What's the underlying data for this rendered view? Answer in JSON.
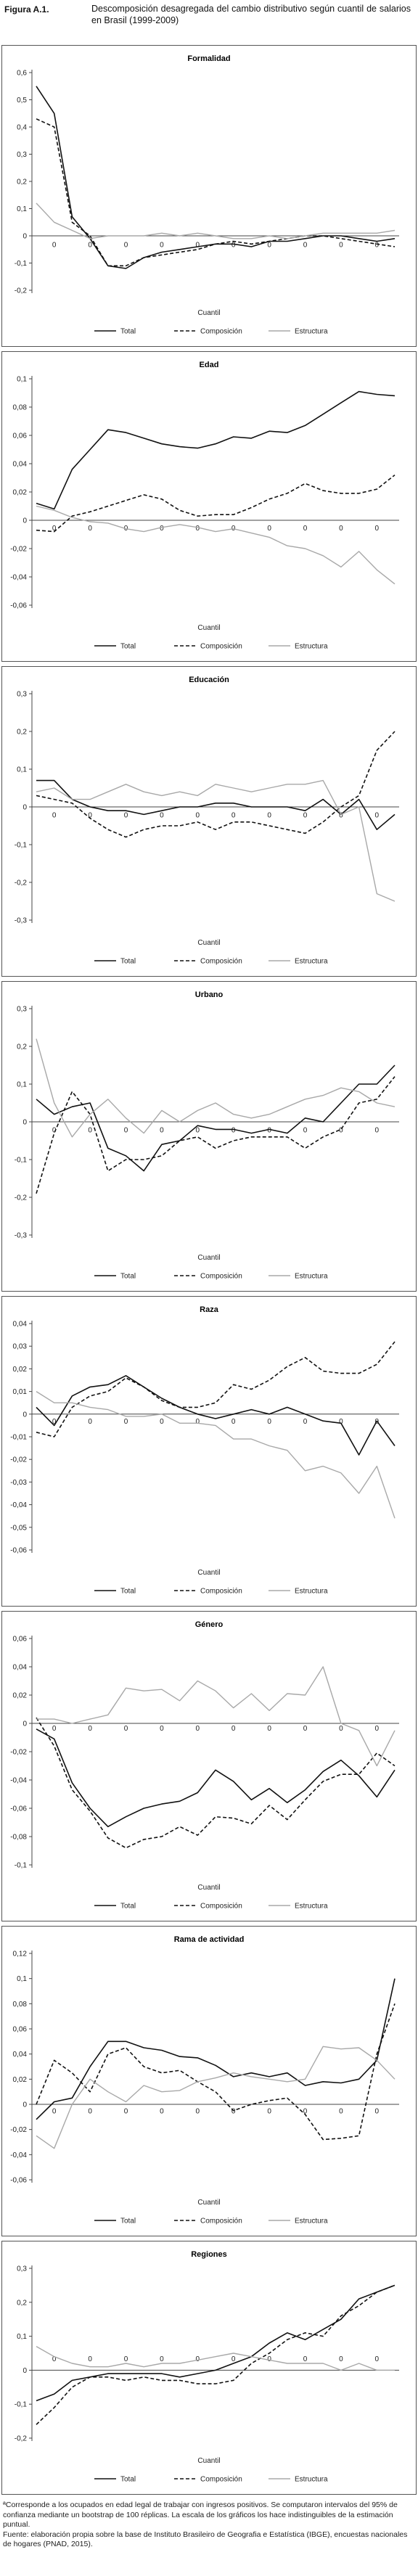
{
  "header": {
    "figure_label": "Figura A.1.",
    "title": "Descomposición desagregada del cambio distributivo según cuantil de salarios en Brasil (1999-2009)"
  },
  "footer": {
    "note": "ªCorresponde a los ocupados en edad legal de trabajar con ingresos positivos. Se computaron intervalos del 95% de confianza mediante un bootstrap de 100 réplicas. La escala de los gráficos los hace indistinguibles de la estimación puntual.",
    "source": "Fuente: elaboración propia sobre la base de Instituto Brasileiro de Geografia e Estatística (IBGE), encuestas nacionales de hogares (PNAD, 2015)."
  },
  "chart_data": [
    {
      "type": "line",
      "title": "Formalidad",
      "xlabel": "Cuantil",
      "ylim": [
        -0.2,
        0.6
      ],
      "yticks": [
        -0.2,
        -0.1,
        0,
        0.1,
        0.2,
        0.3,
        0.4,
        0.5,
        0.6
      ],
      "ytick_labels": [
        "-0,2",
        "-0,1",
        "0",
        "0,1",
        "0,2",
        "0,3",
        "0,4",
        "0,5",
        "0,6"
      ],
      "x_marker_label": "0",
      "x_marker_y": -0.03,
      "x_marker_at": [
        1,
        3,
        5,
        7,
        9,
        11,
        13,
        15,
        17,
        19
      ],
      "legend": [
        "Total",
        "Composición",
        "Estructura"
      ],
      "legend_position": "bottom",
      "series": [
        {
          "name": "Total",
          "style": "solid-black",
          "values": [
            0.55,
            0.45,
            0.07,
            -0.01,
            -0.11,
            -0.12,
            -0.08,
            -0.06,
            -0.05,
            -0.04,
            -0.03,
            -0.03,
            -0.04,
            -0.02,
            -0.02,
            -0.01,
            0.0,
            0.0,
            -0.01,
            -0.02,
            -0.01
          ]
        },
        {
          "name": "Composición",
          "style": "dashed-black",
          "values": [
            0.43,
            0.4,
            0.05,
            0.0,
            -0.11,
            -0.11,
            -0.08,
            -0.07,
            -0.06,
            -0.05,
            -0.03,
            -0.02,
            -0.03,
            -0.02,
            -0.01,
            0.0,
            0.0,
            -0.01,
            -0.02,
            -0.03,
            -0.04
          ]
        },
        {
          "name": "Estructura",
          "style": "solid-gray",
          "values": [
            0.12,
            0.05,
            0.02,
            -0.01,
            0.0,
            0.0,
            0.0,
            0.01,
            0.0,
            0.01,
            0.0,
            -0.01,
            -0.01,
            0.0,
            -0.01,
            0.0,
            0.01,
            0.01,
            0.01,
            0.01,
            0.02
          ]
        }
      ]
    },
    {
      "type": "line",
      "title": "Edad",
      "xlabel": "Cuantil",
      "ylim": [
        -0.06,
        0.1
      ],
      "yticks": [
        -0.06,
        -0.04,
        -0.02,
        0,
        0.02,
        0.04,
        0.06,
        0.08,
        0.1
      ],
      "ytick_labels": [
        "-0,06",
        "-0,04",
        "-0,02",
        "0",
        "0,02",
        "0,04",
        "0,06",
        "0,08",
        "0,1"
      ],
      "x_marker_label": "0",
      "x_marker_y": -0.005,
      "x_marker_at": [
        1,
        3,
        5,
        7,
        9,
        11,
        13,
        15,
        17,
        19
      ],
      "legend": [
        "Total",
        "Composición",
        "Estructura"
      ],
      "legend_position": "bottom",
      "series": [
        {
          "name": "Total",
          "style": "solid-black",
          "values": [
            0.012,
            0.008,
            0.036,
            0.05,
            0.064,
            0.062,
            0.058,
            0.054,
            0.052,
            0.051,
            0.054,
            0.059,
            0.058,
            0.063,
            0.062,
            0.067,
            0.075,
            0.083,
            0.091,
            0.089,
            0.088
          ]
        },
        {
          "name": "Composición",
          "style": "dashed-black",
          "values": [
            -0.007,
            -0.008,
            0.003,
            0.006,
            0.01,
            0.014,
            0.018,
            0.015,
            0.007,
            0.003,
            0.004,
            0.004,
            0.009,
            0.015,
            0.019,
            0.026,
            0.021,
            0.019,
            0.019,
            0.022,
            0.032
          ]
        },
        {
          "name": "Estructura",
          "style": "solid-gray",
          "values": [
            0.01,
            0.007,
            0.002,
            -0.001,
            -0.002,
            -0.006,
            -0.008,
            -0.005,
            -0.003,
            -0.005,
            -0.008,
            -0.006,
            -0.009,
            -0.012,
            -0.018,
            -0.02,
            -0.025,
            -0.033,
            -0.022,
            -0.035,
            -0.045
          ]
        }
      ]
    },
    {
      "type": "line",
      "title": "Educación",
      "xlabel": "Cuantil",
      "ylim": [
        -0.3,
        0.3
      ],
      "yticks": [
        -0.3,
        -0.2,
        -0.1,
        0,
        0.1,
        0.2,
        0.3
      ],
      "ytick_labels": [
        "-0,3",
        "-0,2",
        "-0,1",
        "0",
        "0,1",
        "0,2",
        "0,3"
      ],
      "x_marker_label": "0",
      "x_marker_y": -0.02,
      "x_marker_at": [
        1,
        3,
        5,
        7,
        9,
        11,
        13,
        15,
        17,
        19
      ],
      "legend": [
        "Total",
        "Composición",
        "Estructura"
      ],
      "legend_position": "bottom",
      "series": [
        {
          "name": "Total",
          "style": "solid-black",
          "values": [
            0.07,
            0.07,
            0.02,
            0.0,
            -0.01,
            -0.01,
            -0.02,
            -0.01,
            0.0,
            0.0,
            0.01,
            0.01,
            0.0,
            0.0,
            0.0,
            -0.01,
            0.02,
            -0.02,
            0.02,
            -0.06,
            -0.02
          ]
        },
        {
          "name": "Composición",
          "style": "dashed-black",
          "values": [
            0.03,
            0.02,
            0.01,
            -0.03,
            -0.06,
            -0.08,
            -0.06,
            -0.05,
            -0.05,
            -0.04,
            -0.06,
            -0.04,
            -0.04,
            -0.05,
            -0.06,
            -0.07,
            -0.04,
            0.0,
            0.03,
            0.15,
            0.2
          ]
        },
        {
          "name": "Estructura",
          "style": "solid-gray",
          "values": [
            0.04,
            0.05,
            0.02,
            0.02,
            0.04,
            0.06,
            0.04,
            0.03,
            0.04,
            0.03,
            0.06,
            0.05,
            0.04,
            0.05,
            0.06,
            0.06,
            0.07,
            -0.02,
            0.0,
            -0.23,
            -0.25
          ]
        }
      ]
    },
    {
      "type": "line",
      "title": "Urbano",
      "xlabel": "Cuantil",
      "ylim": [
        -0.3,
        0.3
      ],
      "yticks": [
        -0.3,
        -0.2,
        -0.1,
        0,
        0.1,
        0.2,
        0.3
      ],
      "ytick_labels": [
        "-0,3",
        "-0,2",
        "-0,1",
        "0",
        "0,1",
        "0,2",
        "0,3"
      ],
      "x_marker_label": "0",
      "x_marker_y": -0.02,
      "x_marker_at": [
        1,
        3,
        5,
        7,
        9,
        11,
        13,
        15,
        17,
        19
      ],
      "legend": [
        "Total",
        "Composición",
        "Estructura"
      ],
      "legend_position": "bottom",
      "series": [
        {
          "name": "Total",
          "style": "solid-black",
          "values": [
            0.06,
            0.02,
            0.04,
            0.05,
            -0.07,
            -0.09,
            -0.13,
            -0.06,
            -0.05,
            -0.01,
            -0.02,
            -0.02,
            -0.03,
            -0.02,
            -0.03,
            0.01,
            0.0,
            0.05,
            0.1,
            0.1,
            0.15
          ]
        },
        {
          "name": "Composición",
          "style": "dashed-black",
          "values": [
            -0.19,
            -0.03,
            0.08,
            0.02,
            -0.13,
            -0.1,
            -0.1,
            -0.09,
            -0.05,
            -0.04,
            -0.07,
            -0.05,
            -0.04,
            -0.04,
            -0.04,
            -0.07,
            -0.04,
            -0.02,
            0.05,
            0.06,
            0.12
          ]
        },
        {
          "name": "Estructura",
          "style": "solid-gray",
          "values": [
            0.22,
            0.05,
            -0.04,
            0.02,
            0.06,
            0.01,
            -0.03,
            0.03,
            0.0,
            0.03,
            0.05,
            0.02,
            0.01,
            0.02,
            0.04,
            0.06,
            0.07,
            0.09,
            0.08,
            0.05,
            0.04
          ]
        }
      ]
    },
    {
      "type": "line",
      "title": "Raza",
      "xlabel": "Cuantil",
      "ylim": [
        -0.06,
        0.04
      ],
      "yticks": [
        -0.06,
        -0.05,
        -0.04,
        -0.03,
        -0.02,
        -0.01,
        0,
        0.01,
        0.02,
        0.03,
        0.04
      ],
      "ytick_labels": [
        "-0,06",
        "-0,05",
        "-0,04",
        "-0,03",
        "-0,02",
        "-0,01",
        "0",
        "0,01",
        "0,02",
        "0,03",
        "0,04"
      ],
      "x_marker_label": "0",
      "x_marker_y": -0.003,
      "x_marker_at": [
        1,
        3,
        5,
        7,
        9,
        11,
        13,
        15,
        17,
        19
      ],
      "legend": [
        "Total",
        "Composición",
        "Estructura"
      ],
      "legend_position": "bottom",
      "series": [
        {
          "name": "Total",
          "style": "solid-black",
          "values": [
            0.003,
            -0.005,
            0.008,
            0.012,
            0.013,
            0.017,
            0.012,
            0.007,
            0.003,
            0.0,
            -0.002,
            0.0,
            0.002,
            0.0,
            0.003,
            0.0,
            -0.003,
            -0.004,
            -0.018,
            -0.003,
            -0.014
          ]
        },
        {
          "name": "Composición",
          "style": "dashed-black",
          "values": [
            -0.008,
            -0.01,
            0.003,
            0.008,
            0.01,
            0.016,
            0.012,
            0.006,
            0.003,
            0.003,
            0.005,
            0.013,
            0.011,
            0.015,
            0.021,
            0.025,
            0.019,
            0.018,
            0.018,
            0.022,
            0.032
          ]
        },
        {
          "name": "Estructura",
          "style": "solid-gray",
          "values": [
            0.01,
            0.005,
            0.005,
            0.003,
            0.002,
            -0.001,
            -0.001,
            0.0,
            -0.004,
            -0.004,
            -0.005,
            -0.011,
            -0.011,
            -0.014,
            -0.016,
            -0.025,
            -0.023,
            -0.026,
            -0.035,
            -0.023,
            -0.046
          ]
        }
      ]
    },
    {
      "type": "line",
      "title": "Género",
      "xlabel": "Cuantil",
      "ylim": [
        -0.1,
        0.06
      ],
      "yticks": [
        -0.1,
        -0.08,
        -0.06,
        -0.04,
        -0.02,
        0,
        0.02,
        0.04,
        0.06
      ],
      "ytick_labels": [
        "-0,1",
        "-0,08",
        "-0,06",
        "-0,04",
        "-0,02",
        "0",
        "0,02",
        "0,04",
        "0,06"
      ],
      "x_marker_label": "0",
      "x_marker_y": -0.003,
      "x_marker_at": [
        1,
        3,
        5,
        7,
        9,
        11,
        13,
        15,
        17,
        19
      ],
      "legend": [
        "Total",
        "Composición",
        "Estructura"
      ],
      "legend_position": "bottom",
      "series": [
        {
          "name": "Total",
          "style": "solid-black",
          "values": [
            -0.004,
            -0.011,
            -0.042,
            -0.06,
            -0.073,
            -0.066,
            -0.06,
            -0.057,
            -0.055,
            -0.049,
            -0.033,
            -0.041,
            -0.054,
            -0.046,
            -0.056,
            -0.047,
            -0.034,
            -0.026,
            -0.037,
            -0.052,
            -0.033
          ]
        },
        {
          "name": "Composición",
          "style": "dashed-black",
          "values": [
            0.004,
            -0.016,
            -0.047,
            -0.062,
            -0.081,
            -0.088,
            -0.082,
            -0.08,
            -0.073,
            -0.079,
            -0.066,
            -0.067,
            -0.071,
            -0.058,
            -0.068,
            -0.054,
            -0.041,
            -0.036,
            -0.036,
            -0.021,
            -0.03
          ]
        },
        {
          "name": "Estructura",
          "style": "solid-gray",
          "values": [
            0.003,
            0.003,
            0.0,
            0.003,
            0.006,
            0.025,
            0.023,
            0.024,
            0.016,
            0.03,
            0.023,
            0.011,
            0.021,
            0.009,
            0.021,
            0.02,
            0.04,
            0.0,
            -0.005,
            -0.03,
            -0.005
          ]
        }
      ]
    },
    {
      "type": "line",
      "title": "Rama de actividad",
      "xlabel": "Cuantil",
      "ylim": [
        -0.06,
        0.12
      ],
      "yticks": [
        -0.06,
        -0.04,
        -0.02,
        0,
        0.02,
        0.04,
        0.06,
        0.08,
        0.1,
        0.12
      ],
      "ytick_labels": [
        "-0,06",
        "-0,04",
        "-0,02",
        "0",
        "0,02",
        "0,04",
        "0,06",
        "0,08",
        "0,1",
        "0,12"
      ],
      "x_marker_label": "0",
      "x_marker_y": -0.005,
      "x_marker_at": [
        1,
        3,
        5,
        7,
        9,
        11,
        13,
        15,
        17,
        19
      ],
      "legend": [
        "Total",
        "Composición",
        "Estructura"
      ],
      "legend_position": "bottom",
      "series": [
        {
          "name": "Total",
          "style": "solid-black",
          "values": [
            -0.012,
            0.002,
            0.005,
            0.03,
            0.05,
            0.05,
            0.045,
            0.043,
            0.038,
            0.037,
            0.031,
            0.022,
            0.025,
            0.022,
            0.025,
            0.015,
            0.018,
            0.017,
            0.02,
            0.035,
            0.1
          ]
        },
        {
          "name": "Composición",
          "style": "dashed-black",
          "values": [
            0.0,
            0.035,
            0.025,
            0.01,
            0.04,
            0.045,
            0.03,
            0.025,
            0.027,
            0.018,
            0.01,
            -0.005,
            0.0,
            0.003,
            0.005,
            -0.008,
            -0.028,
            -0.027,
            -0.025,
            0.04,
            0.08
          ]
        },
        {
          "name": "Estructura",
          "style": "solid-gray",
          "values": [
            -0.025,
            -0.035,
            0.0,
            0.02,
            0.01,
            0.002,
            0.015,
            0.01,
            0.011,
            0.018,
            0.021,
            0.025,
            0.022,
            0.02,
            0.018,
            0.02,
            0.046,
            0.044,
            0.045,
            0.035,
            0.02
          ]
        }
      ]
    },
    {
      "type": "line",
      "title": "Regiones",
      "xlabel": "Cuantil",
      "ylim": [
        -0.2,
        0.3
      ],
      "yticks": [
        -0.2,
        -0.1,
        0,
        0.1,
        0.2,
        0.3
      ],
      "ytick_labels": [
        "-0,2",
        "-0,1",
        "0",
        "0,1",
        "0,2",
        "0,3"
      ],
      "x_marker_label": "0",
      "x_marker_y": 0.035,
      "x_marker_at": [
        1,
        3,
        5,
        7,
        9,
        11,
        13,
        15,
        17,
        19
      ],
      "legend": [
        "Total",
        "Composición",
        "Estructura"
      ],
      "legend_position": "bottom",
      "series": [
        {
          "name": "Total",
          "style": "solid-black",
          "values": [
            -0.09,
            -0.07,
            -0.03,
            -0.02,
            -0.01,
            -0.01,
            -0.01,
            -0.01,
            -0.02,
            -0.01,
            0.0,
            0.02,
            0.04,
            0.08,
            0.11,
            0.09,
            0.12,
            0.15,
            0.21,
            0.23,
            0.25
          ]
        },
        {
          "name": "Composición",
          "style": "dashed-black",
          "values": [
            -0.16,
            -0.11,
            -0.05,
            -0.02,
            -0.02,
            -0.03,
            -0.02,
            -0.03,
            -0.03,
            -0.04,
            -0.04,
            -0.03,
            0.02,
            0.05,
            0.09,
            0.11,
            0.1,
            0.16,
            0.19,
            0.23,
            0.25
          ]
        },
        {
          "name": "Estructura",
          "style": "solid-gray",
          "values": [
            0.07,
            0.04,
            0.02,
            0.01,
            0.01,
            0.02,
            0.01,
            0.02,
            0.02,
            0.03,
            0.04,
            0.05,
            0.04,
            0.03,
            0.02,
            0.02,
            0.02,
            0.0,
            0.02,
            0.0,
            0.0
          ]
        }
      ]
    }
  ]
}
